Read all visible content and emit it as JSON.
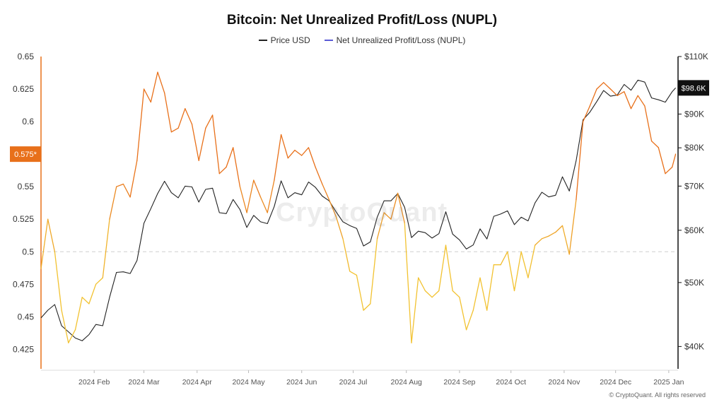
{
  "chart_data": {
    "type": "line",
    "title": "Bitcoin: Net Unrealized Profit/Loss (NUPL)",
    "legend": [
      {
        "label": "Price USD",
        "color": "#222222"
      },
      {
        "label": "Net Unrealized Profit/Loss (NUPL)",
        "color": "#5b5bd6"
      }
    ],
    "credit": "© CryptoQuant. All rights reserved",
    "watermark": "CryptoQuant",
    "x_labels": [
      "2024 Feb",
      "2024 Mar",
      "2024 Apr",
      "2024 May",
      "2024 Jun",
      "2024 Jul",
      "2024 Aug",
      "2024 Sep",
      "2024 Oct",
      "2024 Nov",
      "2024 Dec",
      "2025 Jan"
    ],
    "y_left": {
      "ticks": [
        "0.65",
        "0.625",
        "0.6",
        "0.575",
        "0.55",
        "0.525",
        "0.5",
        "0.475",
        "0.45",
        "0.425"
      ],
      "range": [
        0.41,
        0.65
      ],
      "current_label": "0.575*",
      "current_value": 0.575,
      "reference_line": 0.5
    },
    "y_right": {
      "ticks": [
        "$110K",
        "$90K",
        "$80K",
        "$70K",
        "$60K",
        "$50K",
        "$40K"
      ],
      "tick_values": [
        110000,
        90000,
        80000,
        70000,
        60000,
        50000,
        40000
      ],
      "scale": "log",
      "range": [
        37000,
        110000
      ],
      "current_label": "$98.6K",
      "current_value": 98600
    },
    "nupl_colors": {
      "low": "#f2c230",
      "high": "#e8701a"
    },
    "series": [
      {
        "name": "Price USD",
        "x": [
          "2024-01-01",
          "2024-01-05",
          "2024-01-09",
          "2024-01-13",
          "2024-01-17",
          "2024-01-21",
          "2024-01-25",
          "2024-01-29",
          "2024-02-02",
          "2024-02-06",
          "2024-02-10",
          "2024-02-14",
          "2024-02-18",
          "2024-02-22",
          "2024-02-26",
          "2024-03-01",
          "2024-03-05",
          "2024-03-09",
          "2024-03-13",
          "2024-03-17",
          "2024-03-21",
          "2024-03-25",
          "2024-03-29",
          "2024-04-02",
          "2024-04-06",
          "2024-04-10",
          "2024-04-14",
          "2024-04-18",
          "2024-04-22",
          "2024-04-26",
          "2024-04-30",
          "2024-05-04",
          "2024-05-08",
          "2024-05-12",
          "2024-05-16",
          "2024-05-20",
          "2024-05-24",
          "2024-05-28",
          "2024-06-01",
          "2024-06-05",
          "2024-06-09",
          "2024-06-13",
          "2024-06-17",
          "2024-06-21",
          "2024-06-25",
          "2024-06-29",
          "2024-07-03",
          "2024-07-07",
          "2024-07-11",
          "2024-07-15",
          "2024-07-19",
          "2024-07-23",
          "2024-07-27",
          "2024-07-31",
          "2024-08-04",
          "2024-08-08",
          "2024-08-12",
          "2024-08-16",
          "2024-08-20",
          "2024-08-24",
          "2024-08-28",
          "2024-09-01",
          "2024-09-05",
          "2024-09-09",
          "2024-09-13",
          "2024-09-17",
          "2024-09-21",
          "2024-09-25",
          "2024-09-29",
          "2024-10-03",
          "2024-10-07",
          "2024-10-11",
          "2024-10-15",
          "2024-10-19",
          "2024-10-23",
          "2024-10-27",
          "2024-10-31",
          "2024-11-04",
          "2024-11-08",
          "2024-11-12",
          "2024-11-16",
          "2024-11-20",
          "2024-11-24",
          "2024-11-28",
          "2024-12-02",
          "2024-12-06",
          "2024-12-10",
          "2024-12-14",
          "2024-12-18",
          "2024-12-22",
          "2024-12-26",
          "2024-12-30",
          "2025-01-03",
          "2025-01-05"
        ],
        "values": [
          44200,
          45400,
          46300,
          43000,
          42100,
          41200,
          40800,
          41700,
          43200,
          43000,
          47500,
          51800,
          51900,
          51600,
          54000,
          61500,
          64700,
          68200,
          71200,
          68400,
          67200,
          70000,
          69800,
          66200,
          69200,
          69500,
          63800,
          63600,
          66800,
          64500,
          60600,
          63200,
          61800,
          61400,
          65200,
          71300,
          67200,
          68400,
          67900,
          71000,
          69700,
          67600,
          66500,
          64000,
          61800,
          61000,
          60400,
          56800,
          57600,
          62800,
          66500,
          66500,
          68200,
          65000,
          58500,
          59800,
          59500,
          58400,
          59300,
          64000,
          59200,
          58000,
          56200,
          57000,
          60300,
          58200,
          63000,
          63500,
          64200,
          61200,
          62800,
          62000,
          66000,
          68500,
          67400,
          67800,
          72300,
          68800,
          76500,
          88200,
          90600,
          94000,
          97700,
          95800,
          96200,
          99800,
          97800,
          101300,
          100600,
          95200,
          94600,
          93800,
          97300,
          98600
        ]
      },
      {
        "name": "Net Unrealized Profit/Loss (NUPL)",
        "x": [
          "2024-01-01",
          "2024-01-05",
          "2024-01-09",
          "2024-01-13",
          "2024-01-17",
          "2024-01-21",
          "2024-01-25",
          "2024-01-29",
          "2024-02-02",
          "2024-02-06",
          "2024-02-10",
          "2024-02-14",
          "2024-02-18",
          "2024-02-22",
          "2024-02-26",
          "2024-03-01",
          "2024-03-05",
          "2024-03-09",
          "2024-03-13",
          "2024-03-17",
          "2024-03-21",
          "2024-03-25",
          "2024-03-29",
          "2024-04-02",
          "2024-04-06",
          "2024-04-10",
          "2024-04-14",
          "2024-04-18",
          "2024-04-22",
          "2024-04-26",
          "2024-04-30",
          "2024-05-04",
          "2024-05-08",
          "2024-05-12",
          "2024-05-16",
          "2024-05-20",
          "2024-05-24",
          "2024-05-28",
          "2024-06-01",
          "2024-06-05",
          "2024-06-09",
          "2024-06-13",
          "2024-06-17",
          "2024-06-21",
          "2024-06-25",
          "2024-06-29",
          "2024-07-03",
          "2024-07-07",
          "2024-07-11",
          "2024-07-15",
          "2024-07-19",
          "2024-07-23",
          "2024-07-27",
          "2024-07-31",
          "2024-08-04",
          "2024-08-08",
          "2024-08-12",
          "2024-08-16",
          "2024-08-20",
          "2024-08-24",
          "2024-08-28",
          "2024-09-01",
          "2024-09-05",
          "2024-09-09",
          "2024-09-13",
          "2024-09-17",
          "2024-09-21",
          "2024-09-25",
          "2024-09-29",
          "2024-10-03",
          "2024-10-07",
          "2024-10-11",
          "2024-10-15",
          "2024-10-19",
          "2024-10-23",
          "2024-10-27",
          "2024-10-31",
          "2024-11-04",
          "2024-11-08",
          "2024-11-12",
          "2024-11-16",
          "2024-11-20",
          "2024-11-24",
          "2024-11-28",
          "2024-12-02",
          "2024-12-06",
          "2024-12-10",
          "2024-12-14",
          "2024-12-18",
          "2024-12-22",
          "2024-12-26",
          "2024-12-30",
          "2025-01-03",
          "2025-01-05"
        ],
        "values": [
          0.487,
          0.525,
          0.5,
          0.455,
          0.43,
          0.44,
          0.465,
          0.46,
          0.475,
          0.48,
          0.525,
          0.55,
          0.552,
          0.542,
          0.57,
          0.625,
          0.615,
          0.638,
          0.622,
          0.592,
          0.595,
          0.61,
          0.598,
          0.57,
          0.595,
          0.605,
          0.56,
          0.565,
          0.58,
          0.55,
          0.53,
          0.555,
          0.542,
          0.53,
          0.555,
          0.59,
          0.572,
          0.578,
          0.574,
          0.58,
          0.565,
          0.552,
          0.54,
          0.527,
          0.51,
          0.485,
          0.482,
          0.455,
          0.46,
          0.51,
          0.53,
          0.525,
          0.545,
          0.522,
          0.43,
          0.48,
          0.47,
          0.465,
          0.47,
          0.505,
          0.47,
          0.465,
          0.44,
          0.455,
          0.48,
          0.455,
          0.49,
          0.49,
          0.5,
          0.47,
          0.5,
          0.48,
          0.505,
          0.51,
          0.512,
          0.515,
          0.52,
          0.498,
          0.54,
          0.6,
          0.612,
          0.625,
          0.63,
          0.625,
          0.62,
          0.623,
          0.61,
          0.62,
          0.612,
          0.585,
          0.58,
          0.56,
          0.565,
          0.575
        ]
      }
    ]
  }
}
